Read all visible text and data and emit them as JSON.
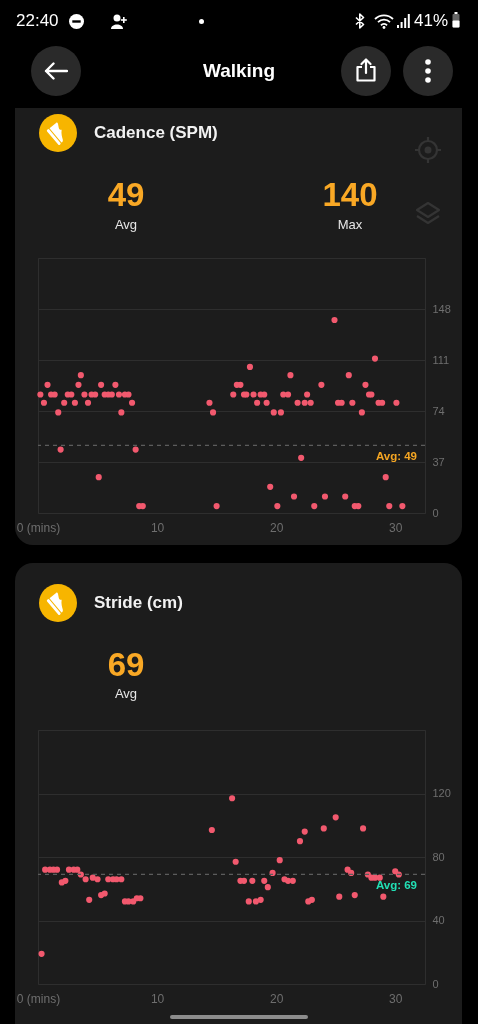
{
  "chart_data": [
    {
      "type": "other",
      "title": "Walking",
      "annotations": [
        "22:40",
        "41%"
      ]
    },
    {
      "type": "scatter",
      "title": "Cadence (SPM)",
      "annotations": [
        "49",
        "Avg",
        "140",
        "Max"
      ],
      "x": [
        0.2,
        0.5,
        0.8,
        1.1,
        1.4,
        1.7,
        1.9,
        2.2,
        2.5,
        2.8,
        3.1,
        3.4,
        3.6,
        3.9,
        4.2,
        4.5,
        4.8,
        5.1,
        5.3,
        5.6,
        5.9,
        6.2,
        6.5,
        6.8,
        7.0,
        7.3,
        7.6,
        7.9,
        8.2,
        8.5,
        8.8,
        14.4,
        14.7,
        15.0,
        16.4,
        16.7,
        17.0,
        17.3,
        17.5,
        17.8,
        18.1,
        18.4,
        18.7,
        19.0,
        19.2,
        19.5,
        19.8,
        20.1,
        20.4,
        20.6,
        21.0,
        21.2,
        21.5,
        21.8,
        22.1,
        22.4,
        22.6,
        22.9,
        23.2,
        23.8,
        24.1,
        24.9,
        25.2,
        25.5,
        25.8,
        26.1,
        26.4,
        26.6,
        26.9,
        27.2,
        27.5,
        27.8,
        28.0,
        28.3,
        28.6,
        28.9,
        29.2,
        29.5,
        30.1,
        30.6
      ],
      "series": [
        {
          "color": "#f2596e",
          "values": [
            86,
            80,
            93,
            86,
            86,
            73,
            46,
            80,
            86,
            86,
            80,
            93,
            100,
            86,
            80,
            86,
            86,
            26,
            93,
            86,
            86,
            86,
            93,
            86,
            73,
            86,
            86,
            80,
            46,
            5,
            5,
            80,
            73,
            5,
            86,
            93,
            93,
            86,
            86,
            106,
            86,
            80,
            86,
            86,
            80,
            19,
            73,
            5,
            73,
            86,
            86,
            100,
            12,
            80,
            40,
            80,
            86,
            80,
            5,
            93,
            12,
            140,
            80,
            80,
            12,
            100,
            80,
            5,
            5,
            73,
            93,
            86,
            86,
            112,
            80,
            80,
            26,
            5,
            80,
            5
          ]
        }
      ],
      "xlim": [
        0,
        32.5
      ],
      "xticks": [
        {
          "value": 0,
          "label": "0 (mins)"
        },
        10,
        20,
        30
      ],
      "ylim": [
        0,
        185
      ],
      "yticks": [
        0,
        37,
        74,
        111,
        148,
        {
          "value": 185,
          "label": null
        }
      ],
      "grid": "y",
      "marker": "circle",
      "ref_lines": [
        {
          "axis": "y",
          "value": 49,
          "label": "Avg: 49",
          "color": "#5c5c5c",
          "line_style": "dashed"
        }
      ]
    },
    {
      "type": "scatter",
      "title": "Stride (cm)",
      "annotations": [
        "69",
        "Avg"
      ],
      "x": [
        0.3,
        0.6,
        1.0,
        1.3,
        1.6,
        2.0,
        2.3,
        2.6,
        3.0,
        3.3,
        3.6,
        4.0,
        4.3,
        4.6,
        5.0,
        5.3,
        5.6,
        5.9,
        6.3,
        6.6,
        7.0,
        7.3,
        7.6,
        8.0,
        8.3,
        8.6,
        14.6,
        16.3,
        16.6,
        17.0,
        17.3,
        17.7,
        18.0,
        18.3,
        18.7,
        19.0,
        19.3,
        19.7,
        20.3,
        20.7,
        21.0,
        21.4,
        22.0,
        22.4,
        22.7,
        23.0,
        24.0,
        25.0,
        25.3,
        26.0,
        26.3,
        26.6,
        27.3,
        27.7,
        28.0,
        28.3,
        28.7,
        29.0,
        30.0,
        30.3
      ],
      "series": [
        {
          "color": "#f2596e",
          "values": [
            19,
            72,
            72,
            72,
            72,
            64,
            65,
            72,
            72,
            72,
            69,
            66,
            53,
            67,
            66,
            56,
            57,
            66,
            66,
            66,
            66,
            52,
            52,
            52,
            54,
            54,
            97,
            117,
            77,
            65,
            65,
            52,
            65,
            52,
            53,
            65,
            61,
            70,
            78,
            66,
            65,
            65,
            90,
            96,
            52,
            53,
            98,
            105,
            55,
            72,
            70,
            56,
            98,
            69,
            67,
            67,
            67,
            55,
            71,
            69
          ]
        }
      ],
      "xlim": [
        0,
        32.5
      ],
      "xticks": [
        {
          "value": 0,
          "label": "0 (mins)"
        },
        10,
        20,
        30
      ],
      "ylim": [
        0,
        160
      ],
      "yticks": [
        0,
        40,
        80,
        120,
        {
          "value": 160,
          "label": null
        }
      ],
      "grid": "y",
      "marker": "circle",
      "ref_lines": [
        {
          "axis": "y",
          "value": 69,
          "label": "Avg: 69",
          "color": "#5c5c5c",
          "line_style": "dashed"
        }
      ]
    }
  ]
}
